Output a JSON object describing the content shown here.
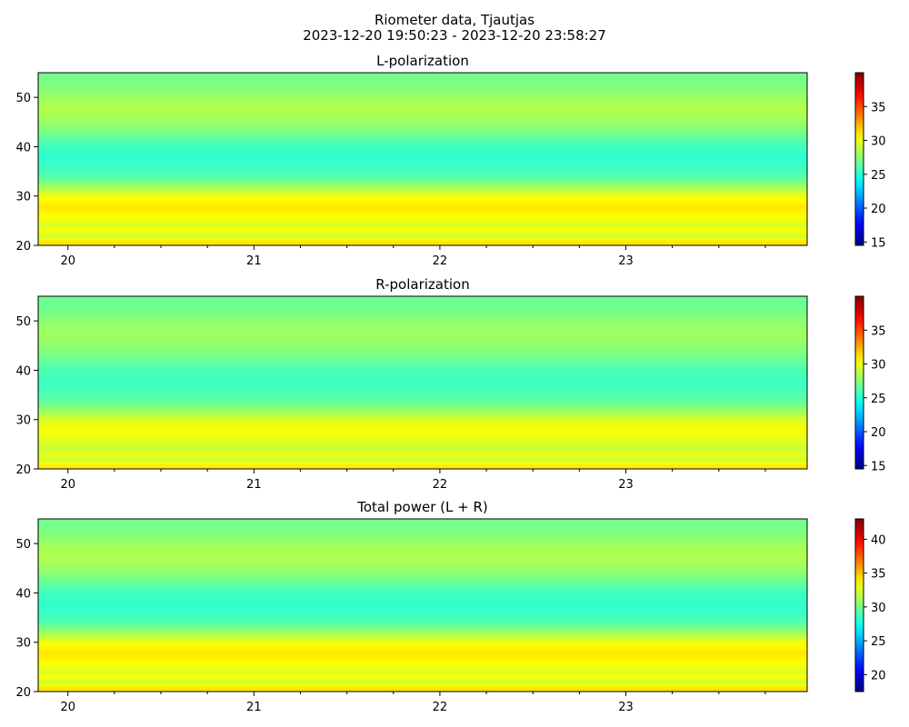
{
  "suptitle": "Riometer data, Tjautjas",
  "subtitle": "2023-12-20 19:50:23 - 2023-12-20 23:58:27",
  "chart_data": [
    {
      "type": "heatmap",
      "title": "L-polarization",
      "colormap": "jet",
      "x_range_hours": [
        19.84,
        23.975
      ],
      "x_ticks": [
        20,
        21,
        22,
        23
      ],
      "x_tick_labels": [
        "20",
        "21",
        "22",
        "23"
      ],
      "ylim": [
        20,
        55
      ],
      "y_ticks": [
        20,
        30,
        40,
        50
      ],
      "y_tick_labels": [
        "20",
        "30",
        "40",
        "50"
      ],
      "colorbar": {
        "range": [
          14.5,
          40
        ],
        "ticks": [
          15,
          20,
          25,
          30,
          35
        ],
        "tick_labels": [
          "15",
          "20",
          "25",
          "30",
          "35"
        ]
      },
      "profile": {
        "y": [
          20,
          21,
          22,
          23,
          24,
          26,
          28,
          30,
          32,
          34,
          36,
          38,
          40,
          42,
          44,
          46,
          48,
          50,
          52,
          54,
          55
        ],
        "value": [
          31.0,
          31.0,
          29.0,
          30.5,
          29.5,
          30.5,
          31.0,
          30.2,
          28.0,
          26.2,
          25.5,
          25.3,
          25.6,
          26.5,
          27.5,
          28.2,
          28.5,
          28.0,
          27.3,
          27.0,
          27.0
        ]
      }
    },
    {
      "type": "heatmap",
      "title": "R-polarization",
      "colormap": "jet",
      "x_range_hours": [
        19.84,
        23.975
      ],
      "x_ticks": [
        20,
        21,
        22,
        23
      ],
      "x_tick_labels": [
        "20",
        "21",
        "22",
        "23"
      ],
      "ylim": [
        20,
        55
      ],
      "y_ticks": [
        20,
        30,
        40,
        50
      ],
      "y_tick_labels": [
        "20",
        "30",
        "40",
        "50"
      ],
      "colorbar": {
        "range": [
          14.5,
          40
        ],
        "ticks": [
          15,
          20,
          25,
          30,
          35
        ],
        "tick_labels": [
          "15",
          "20",
          "25",
          "30",
          "35"
        ]
      },
      "profile": {
        "y": [
          20,
          21,
          22,
          23,
          24,
          26,
          28,
          30,
          32,
          34,
          36,
          38,
          40,
          42,
          44,
          46,
          48,
          50,
          52,
          54,
          55
        ],
        "value": [
          31.0,
          30.8,
          29.0,
          30.0,
          29.0,
          29.8,
          30.3,
          29.6,
          27.8,
          26.4,
          25.8,
          25.6,
          25.9,
          26.6,
          27.4,
          27.9,
          28.0,
          27.6,
          27.0,
          26.8,
          26.8
        ]
      }
    },
    {
      "type": "heatmap",
      "title": "Total power (L + R)",
      "colormap": "jet",
      "x_range_hours": [
        19.84,
        23.975
      ],
      "x_ticks": [
        20,
        21,
        22,
        23
      ],
      "x_tick_labels": [
        "20",
        "21",
        "22",
        "23"
      ],
      "ylim": [
        20,
        55
      ],
      "y_ticks": [
        20,
        30,
        40,
        50
      ],
      "y_tick_labels": [
        "20",
        "30",
        "40",
        "50"
      ],
      "colorbar": {
        "range": [
          17.5,
          43
        ],
        "ticks": [
          20,
          25,
          30,
          35,
          40
        ],
        "tick_labels": [
          "20",
          "25",
          "30",
          "35",
          "40"
        ]
      },
      "profile": {
        "y": [
          20,
          21,
          22,
          23,
          24,
          26,
          28,
          30,
          32,
          34,
          36,
          38,
          40,
          42,
          44,
          46,
          48,
          50,
          52,
          54,
          55
        ],
        "value": [
          34.0,
          34.0,
          32.0,
          33.5,
          32.5,
          33.5,
          34.0,
          33.2,
          31.0,
          29.2,
          28.5,
          28.3,
          28.6,
          29.5,
          30.5,
          31.2,
          31.5,
          31.0,
          30.3,
          30.0,
          30.0
        ]
      }
    }
  ]
}
